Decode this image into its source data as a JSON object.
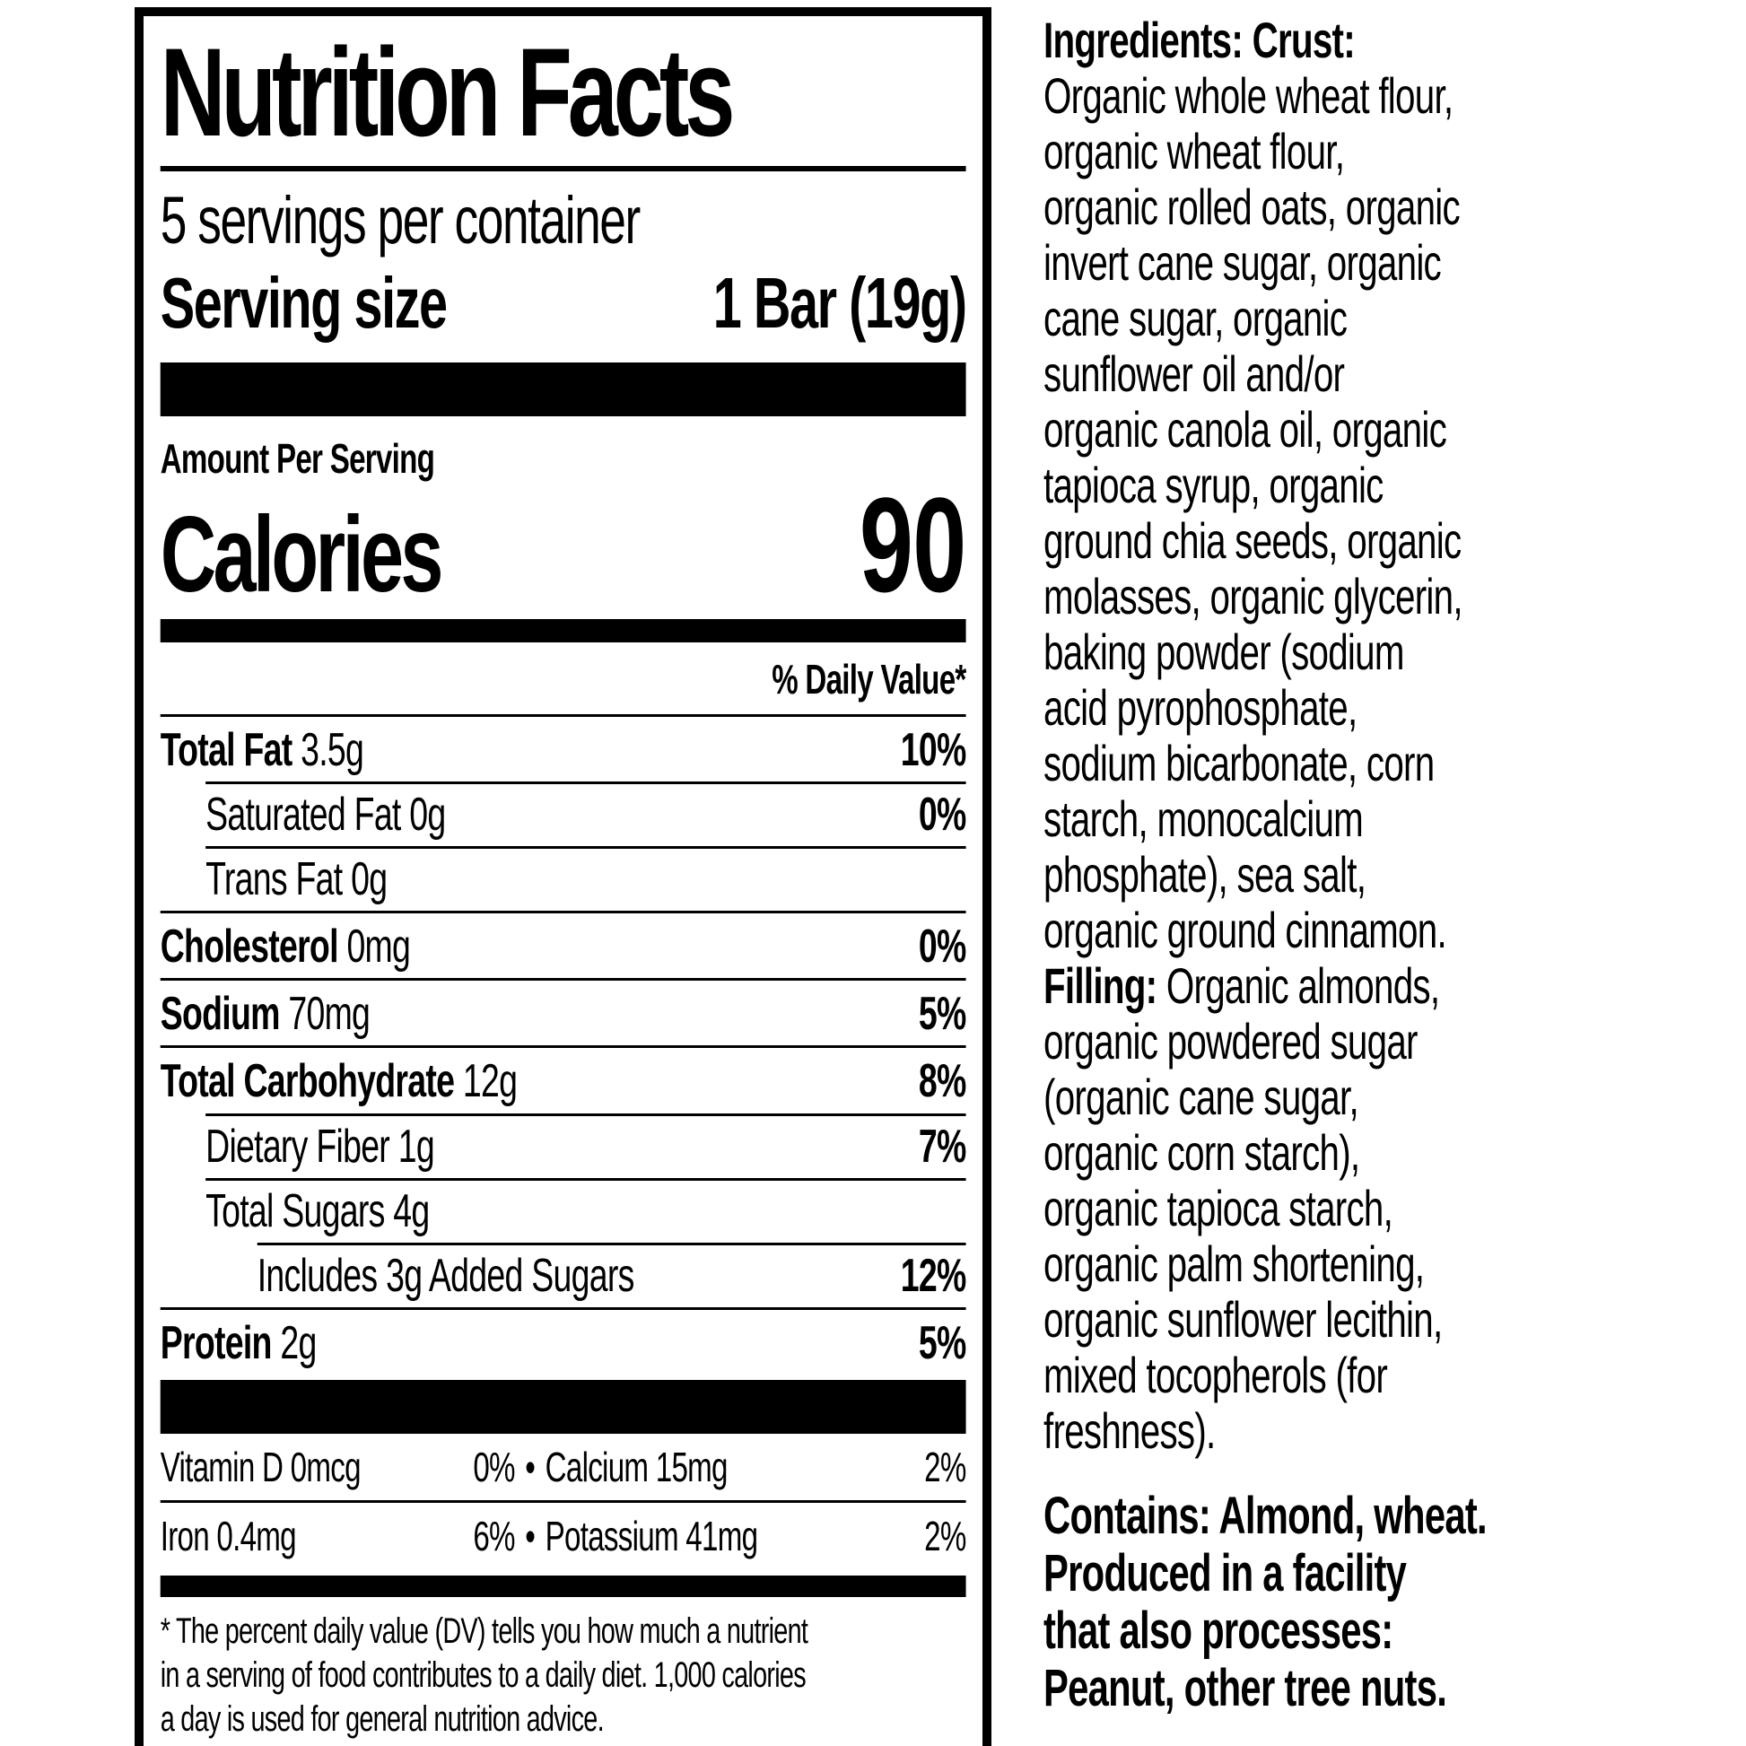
{
  "colors": {
    "ink": "#000000",
    "paper": "#ffffff"
  },
  "nutrition_panel": {
    "title": "Nutrition Facts",
    "servings_per_container": "5 servings per container",
    "serving_size": {
      "label": "Serving size",
      "value": "1 Bar (19g)"
    },
    "amount_per_serving": "Amount Per Serving",
    "calories": {
      "label": "Calories",
      "value": "90"
    },
    "daily_value_header": "% Daily Value*",
    "nutrient_rows": [
      {
        "name": "Total Fat",
        "amount": "3.5g",
        "dv": "10%",
        "bold_name": true,
        "indent": 0
      },
      {
        "name": "Saturated Fat",
        "amount": "0g",
        "dv": "0%",
        "bold_name": false,
        "indent": 1
      },
      {
        "name": "Trans Fat",
        "amount": "0g",
        "dv": "",
        "bold_name": false,
        "indent": 1
      },
      {
        "name": "Cholesterol",
        "amount": "0mg",
        "dv": "0%",
        "bold_name": true,
        "indent": 0
      },
      {
        "name": "Sodium",
        "amount": "70mg",
        "dv": "5%",
        "bold_name": true,
        "indent": 0
      },
      {
        "name": "Total Carbohydrate",
        "amount": "12g",
        "dv": "8%",
        "bold_name": true,
        "indent": 0
      },
      {
        "name": "Dietary Fiber",
        "amount": "1g",
        "dv": "7%",
        "bold_name": false,
        "indent": 1
      },
      {
        "name": "Total Sugars",
        "amount": "4g",
        "dv": "",
        "bold_name": false,
        "indent": 1
      },
      {
        "name": "Includes 3g Added Sugars",
        "amount": "",
        "dv": "12%",
        "bold_name": false,
        "indent": 2
      },
      {
        "name": "Protein",
        "amount": "2g",
        "dv": "5%",
        "bold_name": true,
        "indent": 0
      }
    ],
    "micronutrient_rows": [
      {
        "left": {
          "name": "Vitamin D",
          "amount": "0mcg",
          "dv": "0%"
        },
        "right": {
          "name": "Calcium",
          "amount": "15mg",
          "dv": "2%"
        }
      },
      {
        "left": {
          "name": "Iron",
          "amount": "0.4mg",
          "dv": "6%"
        },
        "right": {
          "name": "Potassium",
          "amount": "41mg",
          "dv": "2%"
        }
      }
    ],
    "bullet": "•",
    "footnote_lines": [
      "* The percent daily value (DV) tells you how much a nutrient",
      "in a serving of food contributes to a daily diet. 1,000 calories",
      "a day is used for general nutrition advice."
    ]
  },
  "ingredients_panel": {
    "lines": [
      {
        "segments": [
          {
            "text": "Ingredients: Crust:",
            "bold": true
          }
        ]
      },
      {
        "segments": [
          {
            "text": "Organic whole wheat flour,",
            "bold": false
          }
        ]
      },
      {
        "segments": [
          {
            "text": "organic wheat flour,",
            "bold": false
          }
        ]
      },
      {
        "segments": [
          {
            "text": "organic rolled oats, organic",
            "bold": false
          }
        ]
      },
      {
        "segments": [
          {
            "text": "invert cane sugar, organic",
            "bold": false
          }
        ]
      },
      {
        "segments": [
          {
            "text": "cane sugar, organic",
            "bold": false
          }
        ]
      },
      {
        "segments": [
          {
            "text": "sunflower oil and/or",
            "bold": false
          }
        ]
      },
      {
        "segments": [
          {
            "text": "organic canola oil, organic",
            "bold": false
          }
        ]
      },
      {
        "segments": [
          {
            "text": "tapioca syrup, organic",
            "bold": false
          }
        ]
      },
      {
        "segments": [
          {
            "text": "ground chia seeds, organic",
            "bold": false
          }
        ]
      },
      {
        "segments": [
          {
            "text": "molasses, organic glycerin,",
            "bold": false
          }
        ]
      },
      {
        "segments": [
          {
            "text": "baking powder (sodium",
            "bold": false
          }
        ]
      },
      {
        "segments": [
          {
            "text": "acid pyrophosphate,",
            "bold": false
          }
        ]
      },
      {
        "segments": [
          {
            "text": "sodium bicarbonate, corn",
            "bold": false
          }
        ]
      },
      {
        "segments": [
          {
            "text": "starch, monocalcium",
            "bold": false
          }
        ]
      },
      {
        "segments": [
          {
            "text": "phosphate), sea salt,",
            "bold": false
          }
        ]
      },
      {
        "segments": [
          {
            "text": "organic ground cinnamon.",
            "bold": false
          }
        ]
      },
      {
        "segments": [
          {
            "text": "Filling:",
            "bold": true
          },
          {
            "text": " Organic almonds,",
            "bold": false
          }
        ]
      },
      {
        "segments": [
          {
            "text": "organic powdered sugar",
            "bold": false
          }
        ]
      },
      {
        "segments": [
          {
            "text": "(organic cane sugar,",
            "bold": false
          }
        ]
      },
      {
        "segments": [
          {
            "text": "organic corn starch),",
            "bold": false
          }
        ]
      },
      {
        "segments": [
          {
            "text": "organic tapioca starch,",
            "bold": false
          }
        ]
      },
      {
        "segments": [
          {
            "text": "organic palm shortening,",
            "bold": false
          }
        ]
      },
      {
        "segments": [
          {
            "text": "organic sunflower lecithin,",
            "bold": false
          }
        ]
      },
      {
        "segments": [
          {
            "text": "mixed tocopherols (for",
            "bold": false
          }
        ]
      },
      {
        "segments": [
          {
            "text": "freshness).",
            "bold": false
          }
        ]
      }
    ],
    "contains_lines": [
      "Contains: Almond, wheat.",
      "Produced in a facility",
      "that also processes:",
      "Peanut, other tree nuts."
    ]
  }
}
